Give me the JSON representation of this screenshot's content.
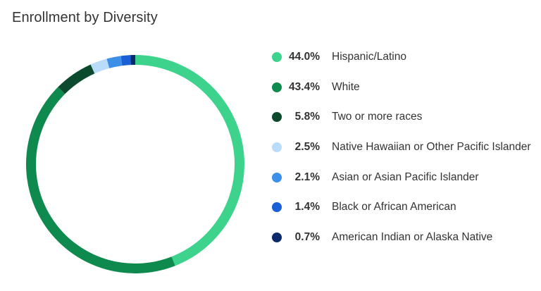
{
  "header": {
    "title": "Enrollment by Diversity"
  },
  "chart_data": {
    "type": "pie",
    "style": "donut",
    "title": "Enrollment by Diversity",
    "legend_placement": "right",
    "slices": [
      {
        "label": "Hispanic/Latino",
        "value": 44.0,
        "value_label": "44.0%",
        "color": "#3dd38c"
      },
      {
        "label": "White",
        "value": 43.4,
        "value_label": "43.4%",
        "color": "#0f8a4f"
      },
      {
        "label": "Two or more races",
        "value": 5.8,
        "value_label": "5.8%",
        "color": "#0b4a2c"
      },
      {
        "label": "Native Hawaiian or Other Pacific Islander",
        "value": 2.5,
        "value_label": "2.5%",
        "color": "#b9dcfb"
      },
      {
        "label": "Asian or Asian Pacific Islander",
        "value": 2.1,
        "value_label": "2.1%",
        "color": "#3d8fe8"
      },
      {
        "label": "Black or African American",
        "value": 1.4,
        "value_label": "1.4%",
        "color": "#1a5fd6"
      },
      {
        "label": "American Indian or Alaska Native",
        "value": 0.7,
        "value_label": "0.7%",
        "color": "#0b2a6b"
      }
    ]
  }
}
